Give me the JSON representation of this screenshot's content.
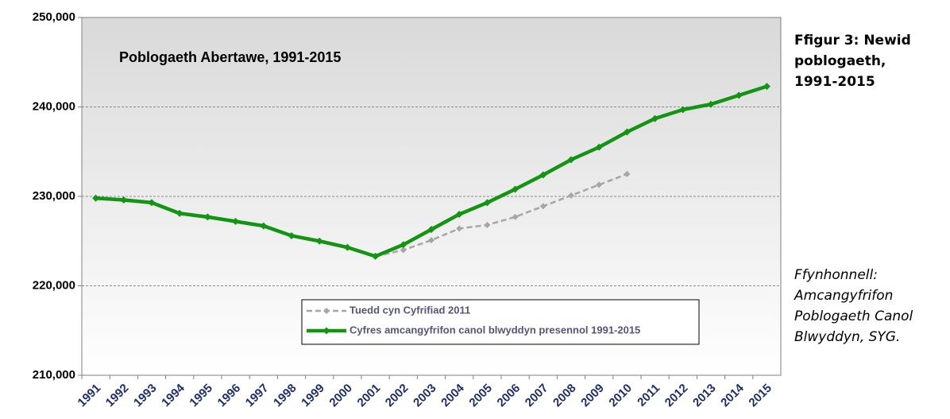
{
  "chart_data": {
    "type": "line",
    "title": "Poblogaeth Abertawe, 1991-2015",
    "categories": [
      "1991",
      "1992",
      "1993",
      "1994",
      "1995",
      "1996",
      "1997",
      "1998",
      "1999",
      "2000",
      "2001",
      "2002",
      "2003",
      "2004",
      "2005",
      "2006",
      "2007",
      "2008",
      "2009",
      "2010",
      "2011",
      "2012",
      "2013",
      "2014",
      "2015"
    ],
    "series": [
      {
        "name": "Tuedd cyn Cyfrifiad 2011",
        "color": "#a6a6a6",
        "dashed": true,
        "values": [
          null,
          null,
          null,
          null,
          null,
          null,
          null,
          null,
          null,
          null,
          223300,
          224000,
          225100,
          226400,
          226800,
          227700,
          228900,
          230100,
          231300,
          232500,
          null,
          null,
          null,
          null,
          null
        ]
      },
      {
        "name": "Cyfres amcangyfrifon canol blwyddyn presennol 1991-2015",
        "color": "#139413",
        "dashed": false,
        "values": [
          229800,
          229600,
          229300,
          228100,
          227700,
          227200,
          226700,
          225600,
          225000,
          224300,
          223300,
          224600,
          226300,
          228000,
          229300,
          230800,
          232400,
          234100,
          235500,
          237200,
          238700,
          239700,
          240300,
          241300,
          242300
        ]
      }
    ],
    "ylim": [
      210000,
      250000
    ],
    "yticks": [
      {
        "value": 210000,
        "label": "210,000"
      },
      {
        "value": 220000,
        "label": "220,000"
      },
      {
        "value": 230000,
        "label": "230,000"
      },
      {
        "value": 240000,
        "label": "240,000"
      },
      {
        "value": 250000,
        "label": "250,000"
      }
    ],
    "grid": true
  },
  "caption": "Ffigur 3: Newid poblogaeth, 1991-2015",
  "source": "Ffynhonnell: Amcangyfrifon Poblogaeth Canol Blwyddyn, SYG."
}
